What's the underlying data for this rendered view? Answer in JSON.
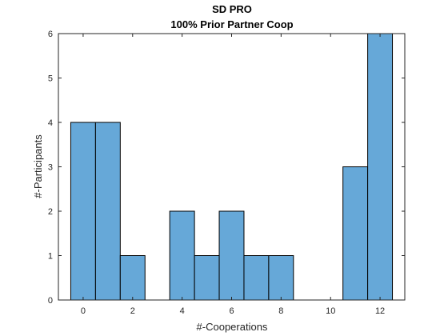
{
  "chart_data": {
    "type": "bar",
    "title": "SD PRO",
    "subtitle": "100% Prior Partner Coop",
    "xlabel": "#-Cooperations",
    "ylabel": "#-Participants",
    "x": [
      0,
      1,
      2,
      3,
      4,
      5,
      6,
      7,
      8,
      9,
      10,
      11,
      12
    ],
    "values": [
      4,
      4,
      1,
      0,
      2,
      1,
      2,
      1,
      1,
      0,
      0,
      3,
      6
    ],
    "bin_width": 1,
    "xlim": [
      -1,
      13
    ],
    "ylim": [
      0,
      6
    ],
    "xticks": [
      "0",
      "2",
      "4",
      "6",
      "8",
      "10",
      "12"
    ],
    "yticks": [
      "0",
      "1",
      "2",
      "3",
      "4",
      "5",
      "6"
    ],
    "grid": false,
    "bar_color": "#66A8D8",
    "edge_color": "#000000"
  }
}
